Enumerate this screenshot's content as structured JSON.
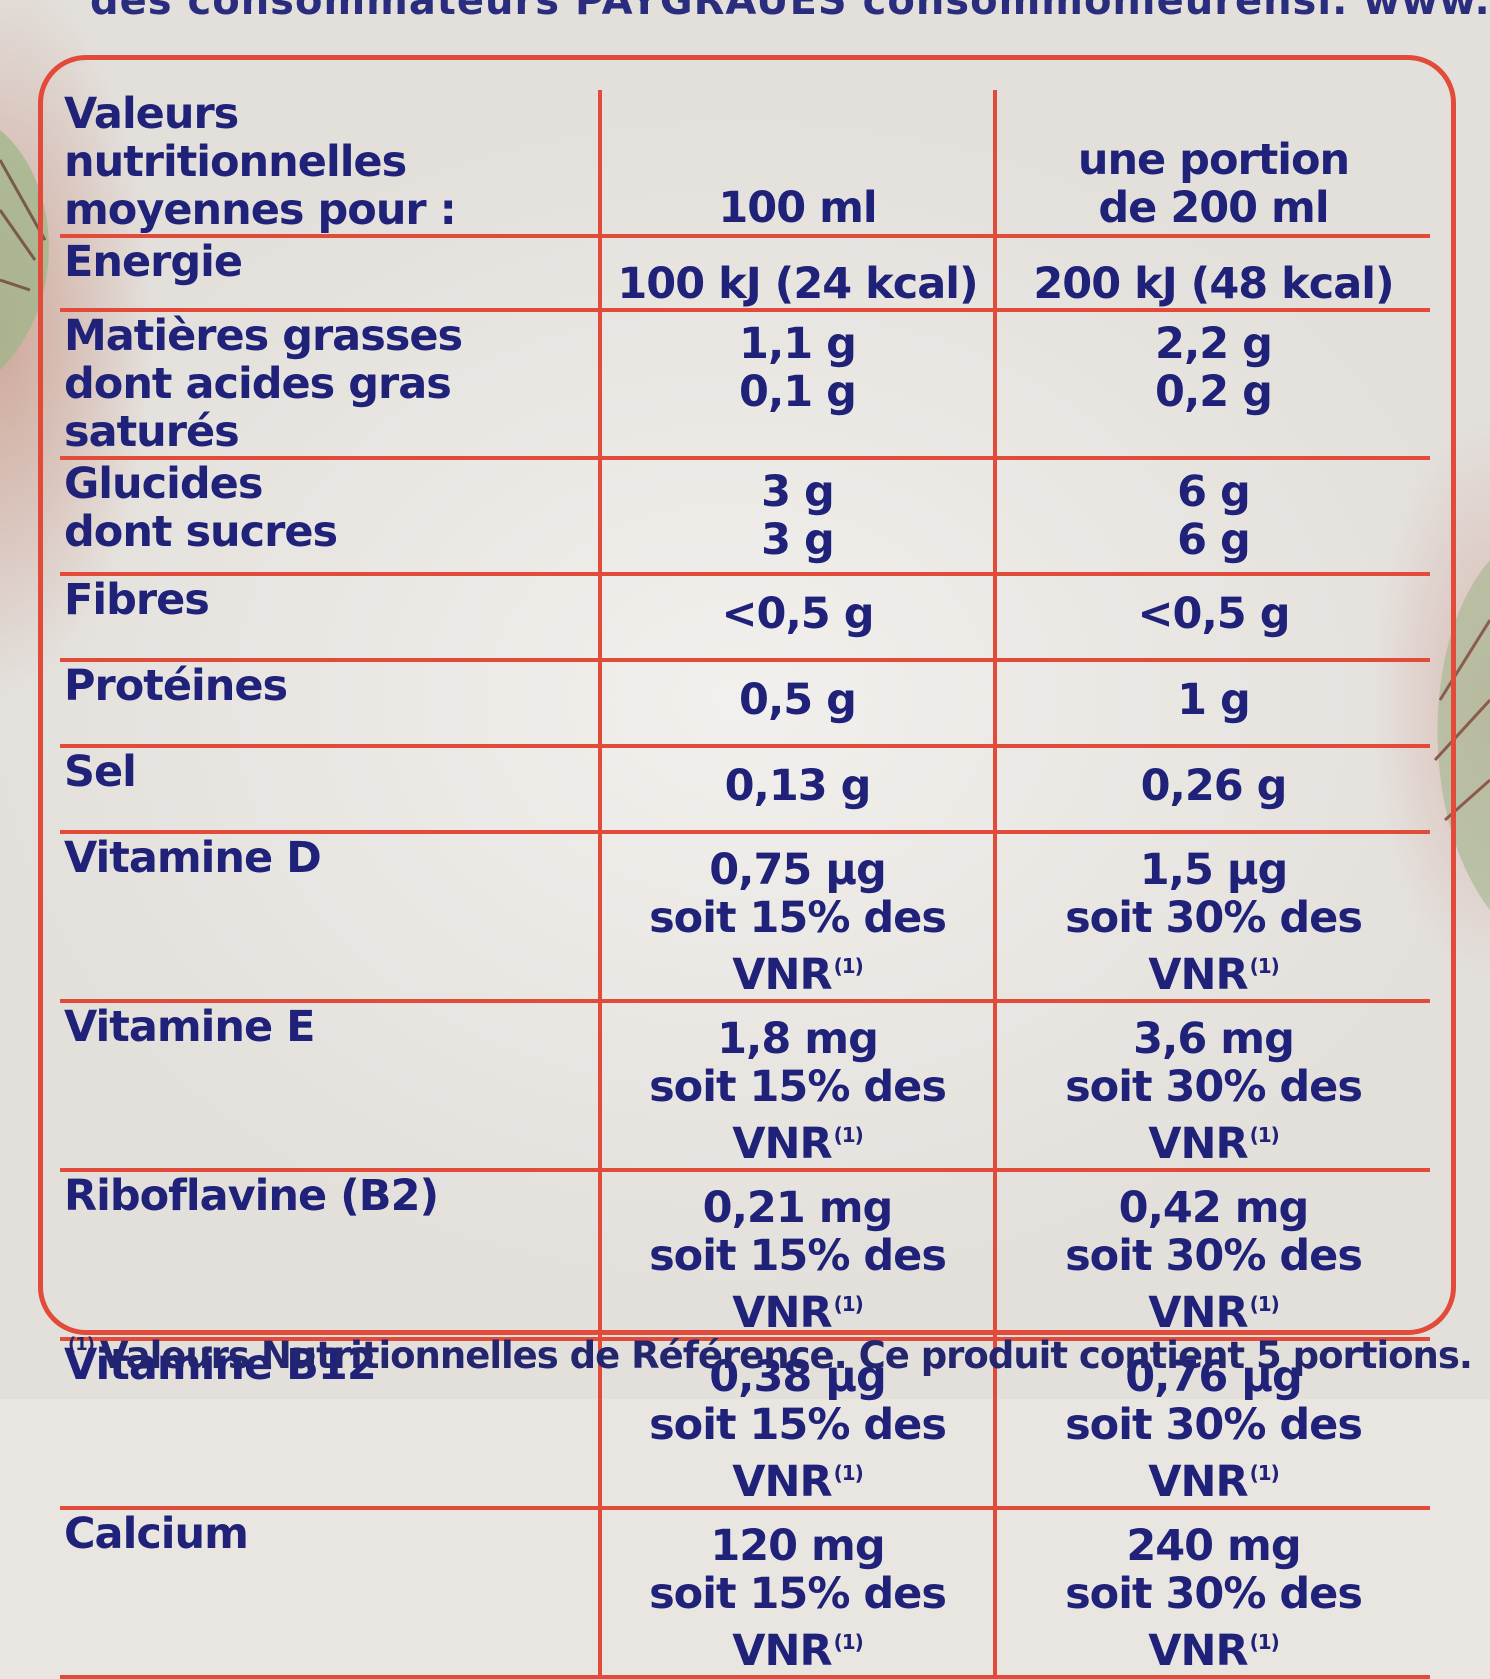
{
  "header_strip": "des consommateurs PAYGRAUES consommonieurensi. www.intermarche.be",
  "table": {
    "col_header_label": [
      "Valeurs nutritionnelles",
      "moyennes pour :"
    ],
    "col_100ml": "100 ml",
    "col_portion": [
      "une portion",
      "de 200 ml"
    ],
    "rows": [
      {
        "label": [
          "Energie"
        ],
        "per100": [
          "100 kJ (24 kcal)"
        ],
        "portion": [
          "200 kJ (48 kcal)"
        ]
      },
      {
        "label": [
          "Matières grasses",
          "dont acides gras saturés"
        ],
        "per100": [
          "1,1 g",
          "0,1 g"
        ],
        "portion": [
          "2,2 g",
          "0,2 g"
        ]
      },
      {
        "label": [
          "Glucides",
          "dont sucres"
        ],
        "per100": [
          "3 g",
          "3 g"
        ],
        "portion": [
          "6 g",
          "6 g"
        ]
      },
      {
        "label": [
          "Fibres"
        ],
        "per100": [
          "<0,5 g"
        ],
        "portion": [
          "<0,5 g"
        ]
      },
      {
        "label": [
          "Protéines"
        ],
        "per100": [
          "0,5 g"
        ],
        "portion": [
          "1 g"
        ]
      },
      {
        "label": [
          "Sel"
        ],
        "per100": [
          "0,13 g"
        ],
        "portion": [
          "0,26 g"
        ]
      },
      {
        "label": [
          "Vitamine D"
        ],
        "per100": [
          "0,75 µg",
          "soit 15% des VNR"
        ],
        "portion": [
          "1,5 µg",
          "soit 30% des VNR"
        ]
      },
      {
        "label": [
          "Vitamine E"
        ],
        "per100": [
          "1,8 mg",
          "soit 15% des VNR"
        ],
        "portion": [
          "3,6 mg",
          "soit 30% des VNR"
        ]
      },
      {
        "label": [
          "Riboflavine (B2)"
        ],
        "per100": [
          "0,21 mg",
          "soit 15% des VNR"
        ],
        "portion": [
          "0,42 mg",
          "soit 30% des VNR"
        ]
      },
      {
        "label": [
          "Vitamine B12"
        ],
        "per100": [
          "0,38 µg",
          "soit 15% des VNR"
        ],
        "portion": [
          "0,76 µg",
          "soit 30% des VNR"
        ]
      },
      {
        "label": [
          "Calcium"
        ],
        "per100": [
          "120 mg",
          "soit 15% des VNR"
        ],
        "portion": [
          "240 mg",
          "soit 30% des VNR"
        ]
      }
    ],
    "vnr_marker": "(1)"
  },
  "footnote": {
    "marker": "(1)",
    "text": "Valeurs Nutritionnelles de Référence. Ce produit contient 5 portions."
  },
  "colors": {
    "ink": "#1f2278",
    "rule": "#e24a3a",
    "paper": "#f2f0ec"
  }
}
